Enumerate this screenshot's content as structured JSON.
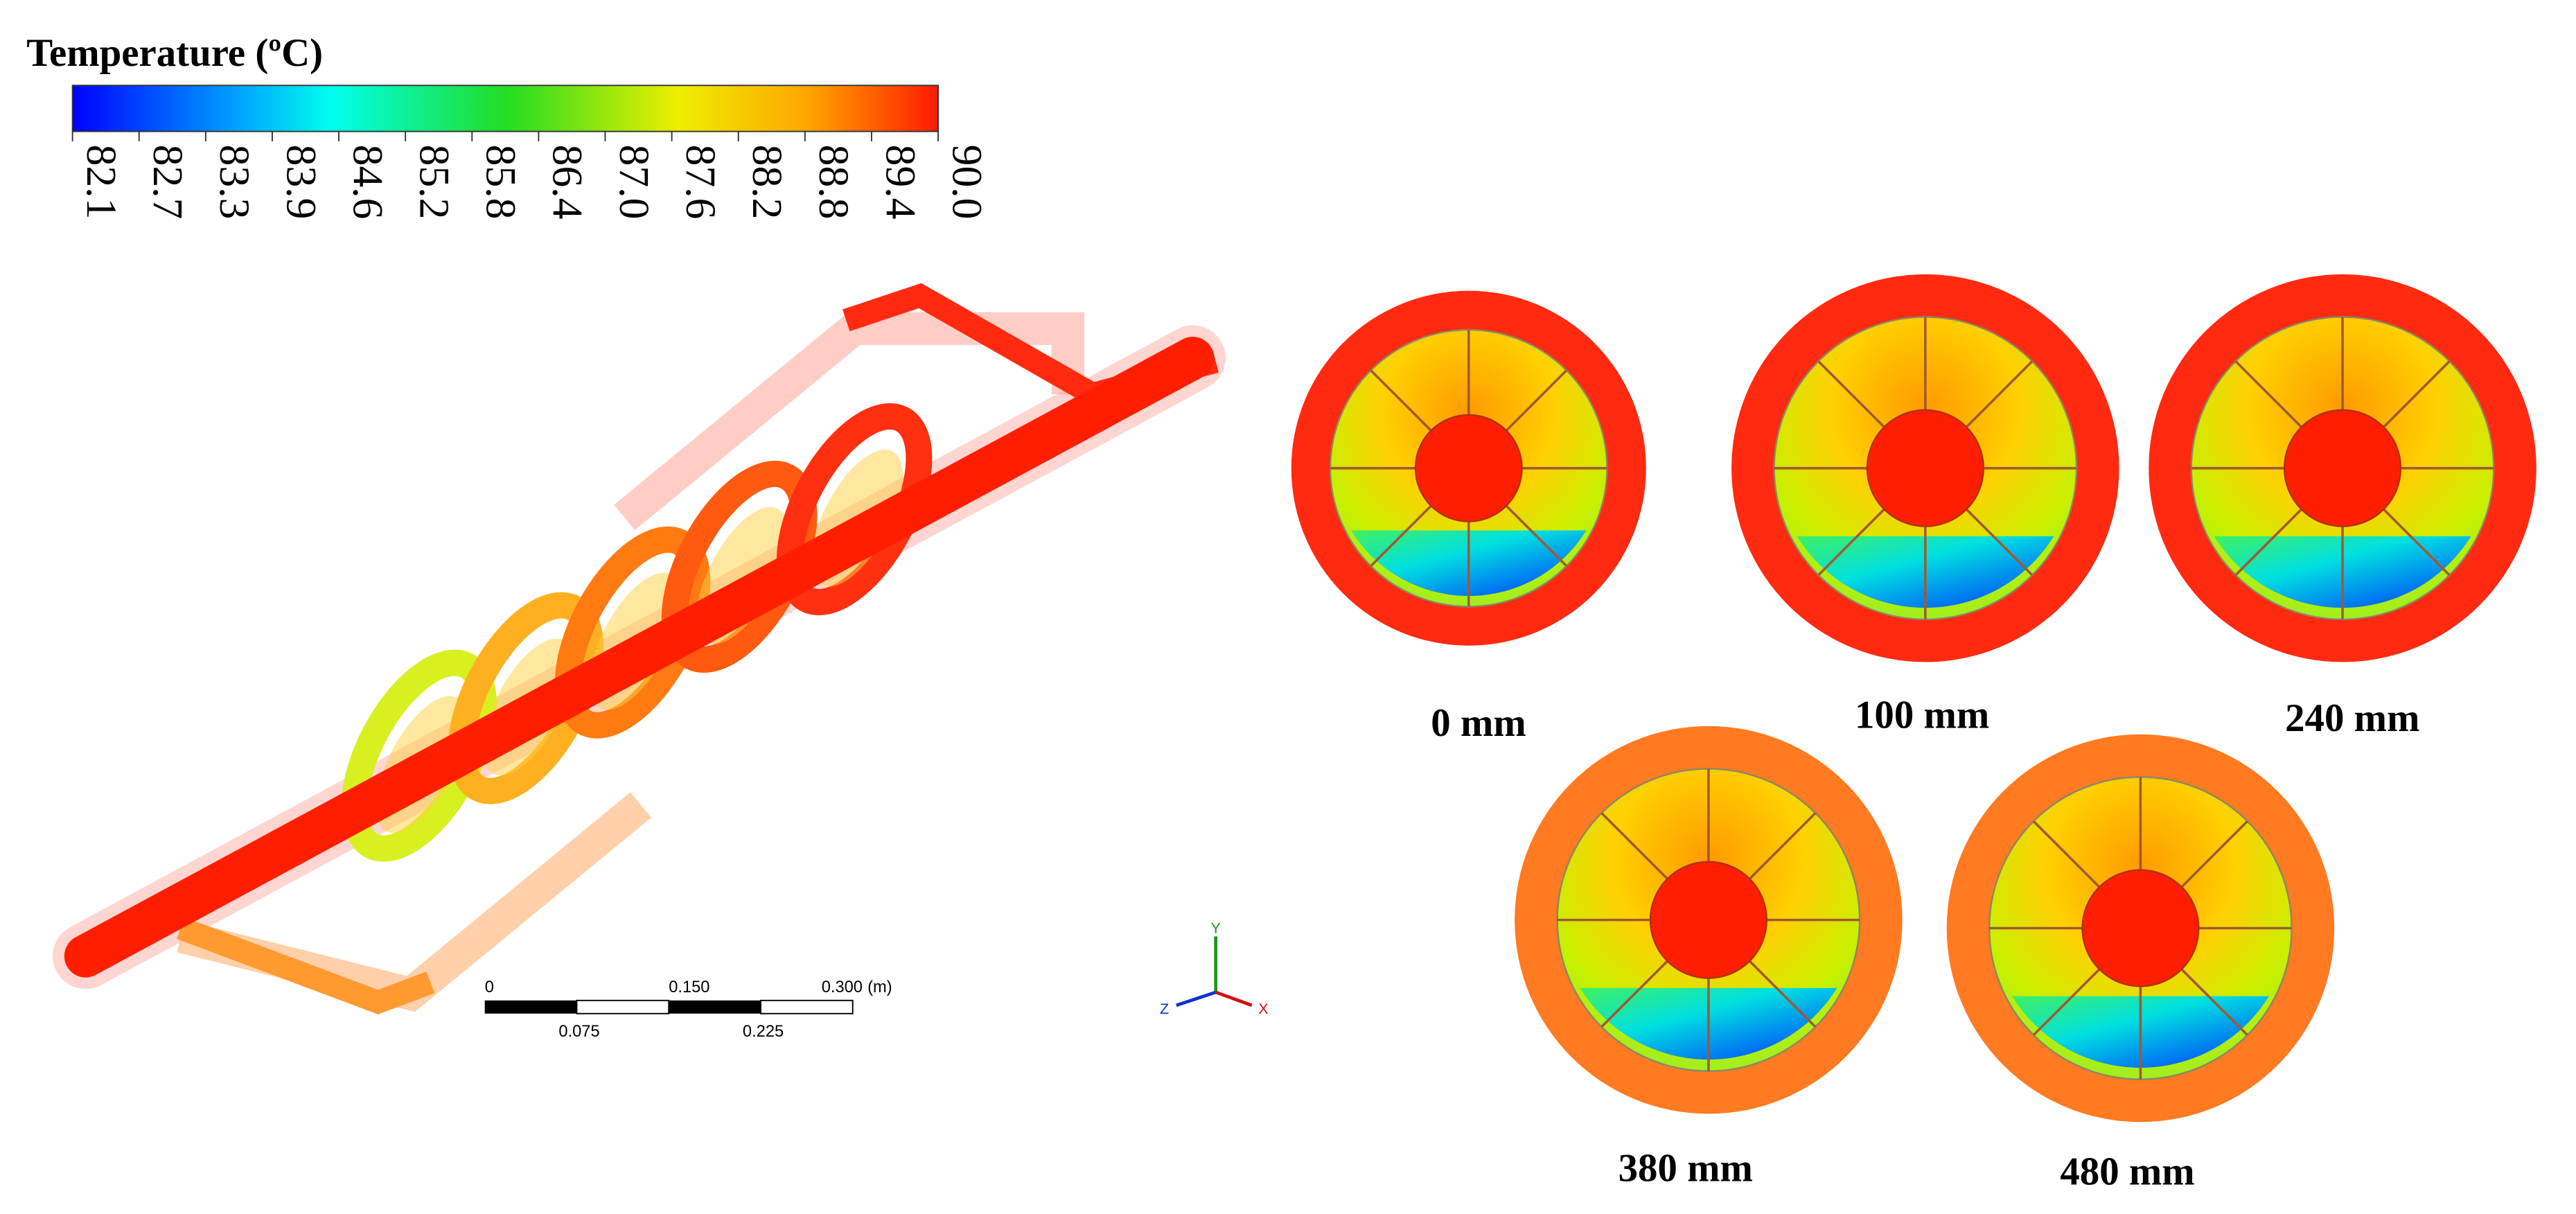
{
  "colorbar": {
    "title": "Temperature (ºC)",
    "ticks": [
      "82.1",
      "82.7",
      "83.3",
      "83.9",
      "84.6",
      "85.2",
      "85.8",
      "86.4",
      "87.0",
      "87.6",
      "88.2",
      "88.8",
      "89.4",
      "90.0"
    ]
  },
  "scale_bar": {
    "labels_top": [
      "0",
      "0.150",
      "0.300"
    ],
    "unit": "(m)",
    "labels_bottom": [
      "0.075",
      "0.225"
    ]
  },
  "axes_triad": {
    "y": "Y",
    "x": "X",
    "z": "Z"
  },
  "sections": [
    {
      "label": "0 mm"
    },
    {
      "label": "100 mm"
    },
    {
      "label": "240 mm"
    },
    {
      "label": "380 mm"
    },
    {
      "label": "480 mm"
    }
  ]
}
